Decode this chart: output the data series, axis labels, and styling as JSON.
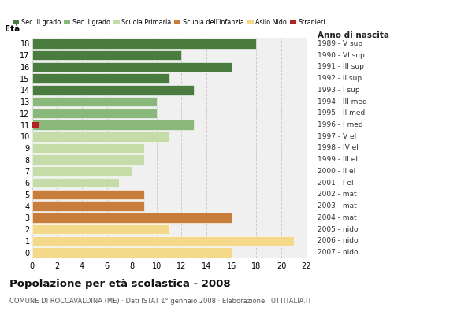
{
  "ages": [
    18,
    17,
    16,
    15,
    14,
    13,
    12,
    11,
    10,
    9,
    8,
    7,
    6,
    5,
    4,
    3,
    2,
    1,
    0
  ],
  "anno_nascita": [
    "1989 - V sup",
    "1990 - VI sup",
    "1991 - III sup",
    "1992 - II sup",
    "1993 - I sup",
    "1994 - III med",
    "1995 - II med",
    "1996 - I med",
    "1997 - V el",
    "1998 - IV el",
    "1999 - III el",
    "2000 - II el",
    "2001 - I el",
    "2002 - mat",
    "2003 - mat",
    "2004 - mat",
    "2005 - nido",
    "2006 - nido",
    "2007 - nido"
  ],
  "values": [
    18,
    12,
    16,
    11,
    13,
    10,
    10,
    13,
    11,
    9,
    9,
    8,
    7,
    9,
    9,
    16,
    11,
    21,
    16
  ],
  "stranieri_age": [
    11
  ],
  "bar_colors": [
    "#4a7c3f",
    "#4a7c3f",
    "#4a7c3f",
    "#4a7c3f",
    "#4a7c3f",
    "#8ab87a",
    "#8ab87a",
    "#8ab87a",
    "#c5dba8",
    "#c5dba8",
    "#c5dba8",
    "#c5dba8",
    "#c5dba8",
    "#c97d3a",
    "#c97d3a",
    "#c97d3a",
    "#f5d98b",
    "#f5d98b",
    "#f5d98b"
  ],
  "legend_labels": [
    "Sec. II grado",
    "Sec. I grado",
    "Scuola Primaria",
    "Scuola dell'Infanzia",
    "Asilo Nido",
    "Stranieri"
  ],
  "legend_colors": [
    "#4a7c3f",
    "#8ab87a",
    "#c5dba8",
    "#c97d3a",
    "#f5d98b",
    "#b22222"
  ],
  "straniero_color": "#b22222",
  "title1": "Popolazione per età scolastica - 2008",
  "title2": "COMUNE DI ROCCAVALDINA (ME) · Dati ISTAT 1° gennaio 2008 · Elaborazione TUTTITALIA.IT",
  "xlabel_eta": "Età",
  "xlabel_anno": "Anno di nascita",
  "xlim": [
    0,
    22
  ],
  "xticks": [
    0,
    2,
    4,
    6,
    8,
    10,
    12,
    14,
    16,
    18,
    20,
    22
  ],
  "bar_height": 0.85,
  "background_color": "#ffffff",
  "plot_bg_color": "#f0f0f0",
  "grid_color": "#cccccc"
}
